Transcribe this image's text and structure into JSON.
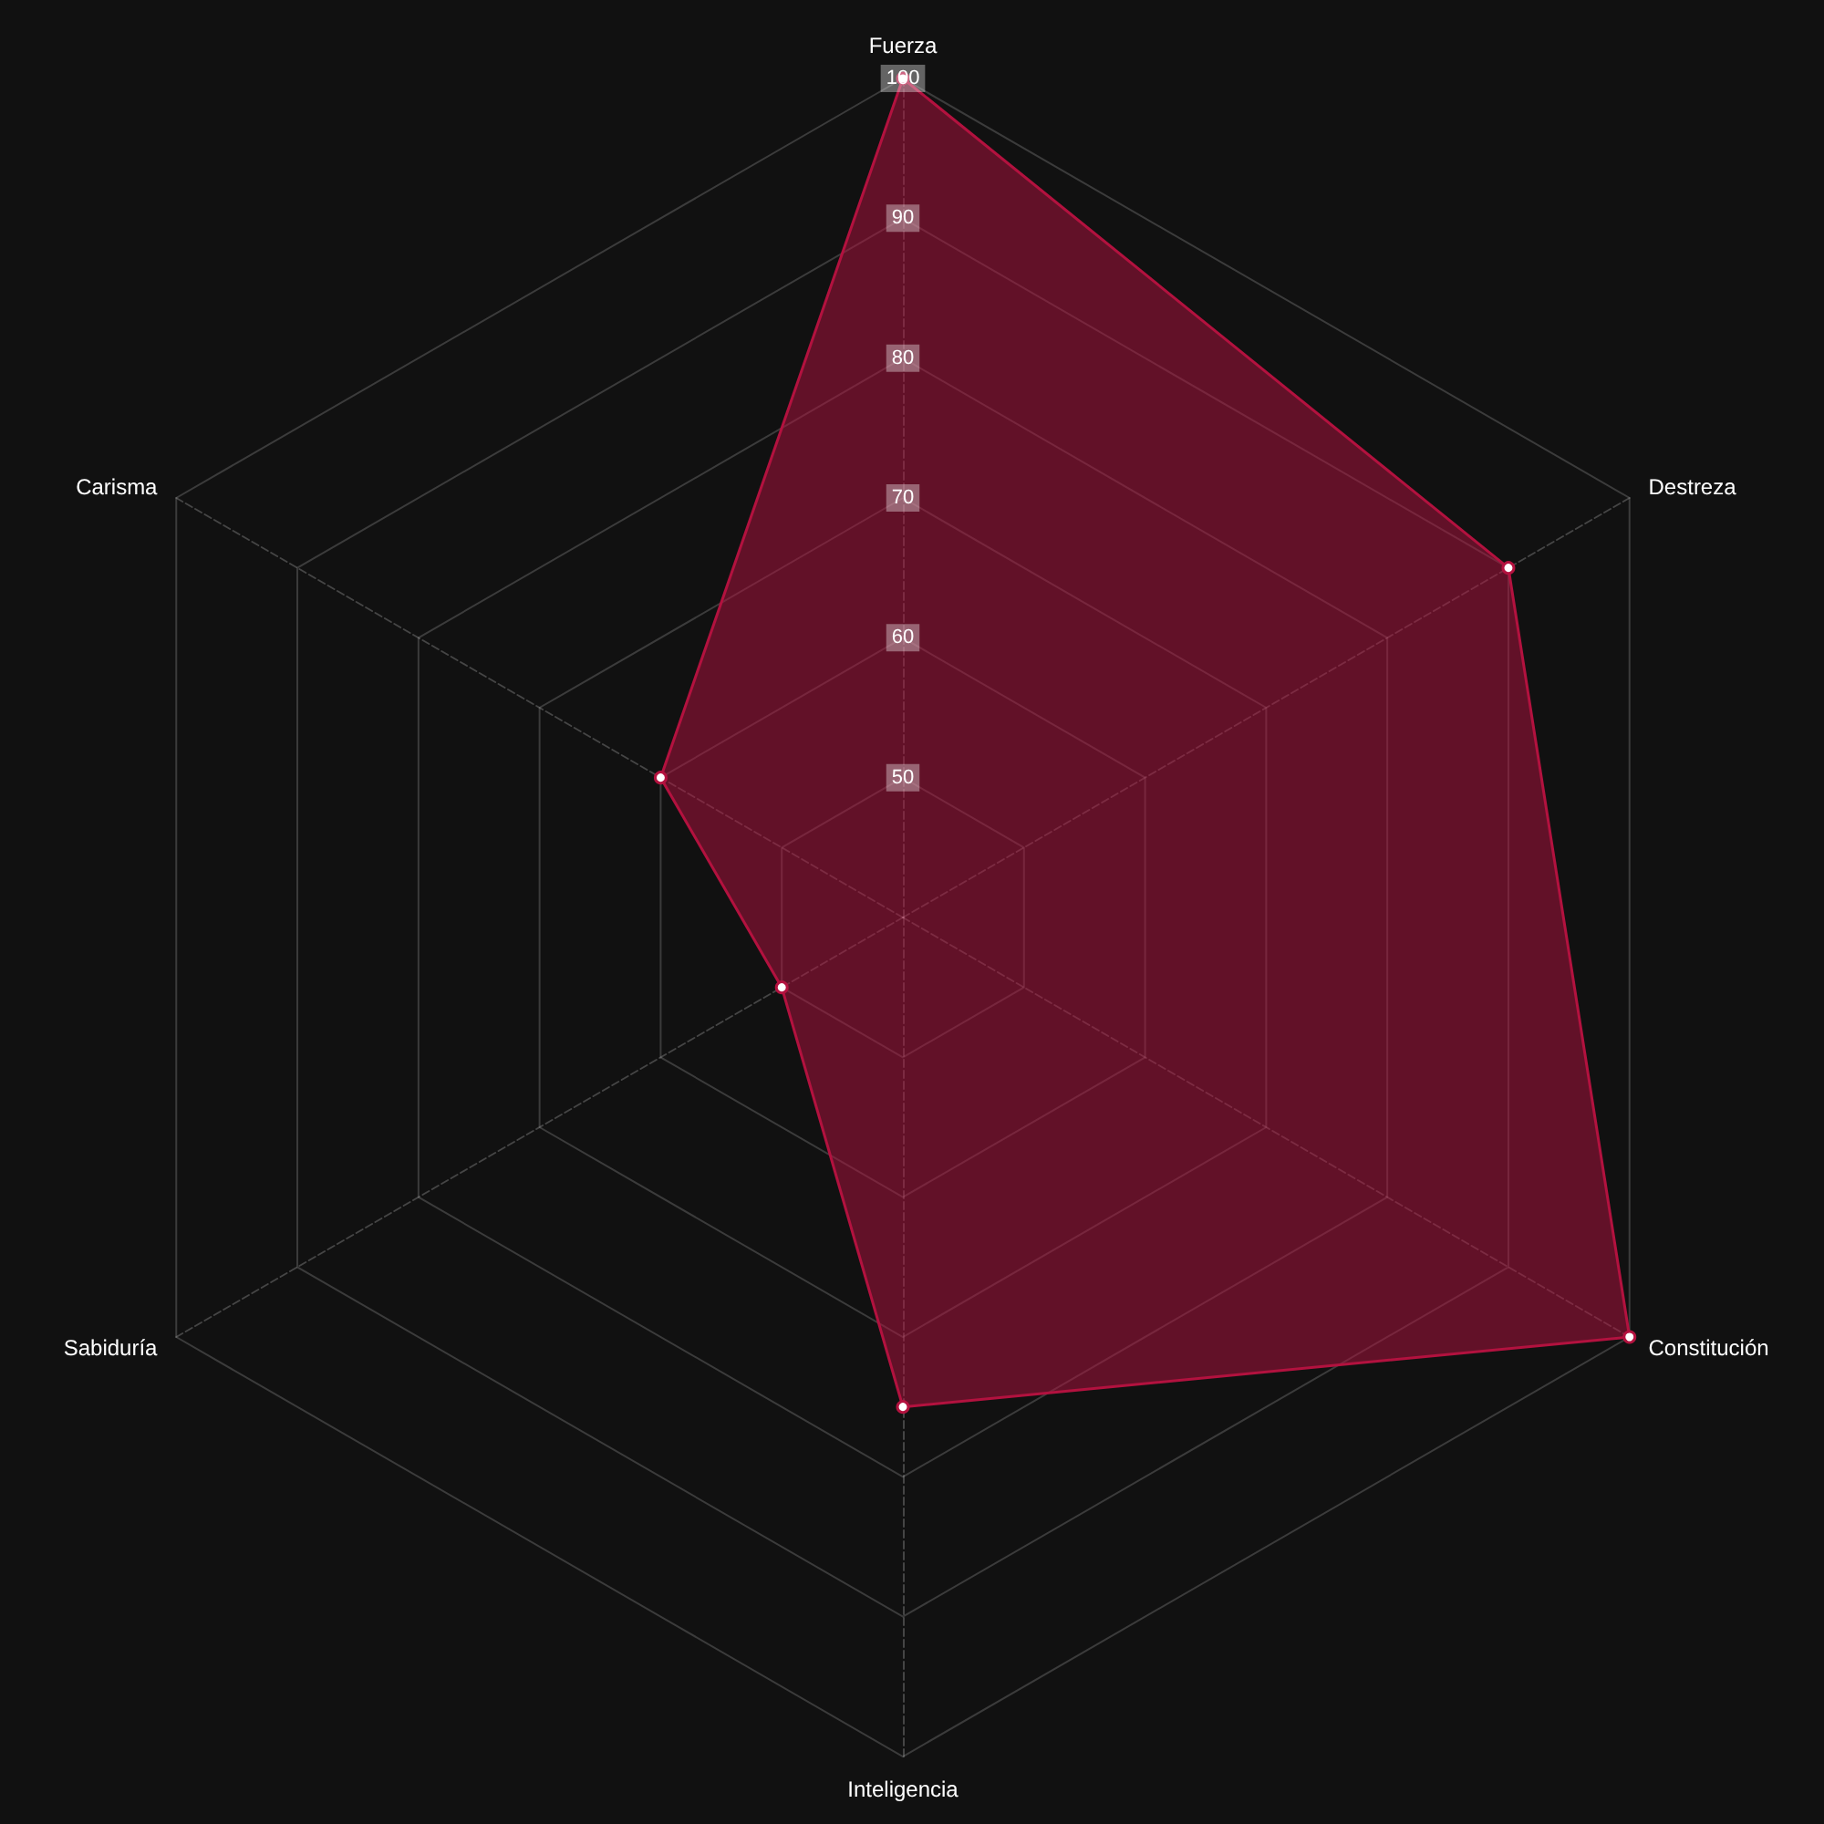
{
  "chart_data": {
    "type": "radar",
    "categories": [
      "Fuerza",
      "Destreza",
      "Constitución",
      "Inteligencia",
      "Sabiduría",
      "Carisma"
    ],
    "series": [
      {
        "color": "#b3123f",
        "values": [
          100,
          90,
          100,
          75,
          50,
          60
        ]
      }
    ],
    "ylim": [
      40,
      100
    ],
    "yticks": [
      50,
      60,
      70,
      80,
      90,
      100
    ],
    "grid": true,
    "marker": "circle",
    "line_style": "solid"
  }
}
